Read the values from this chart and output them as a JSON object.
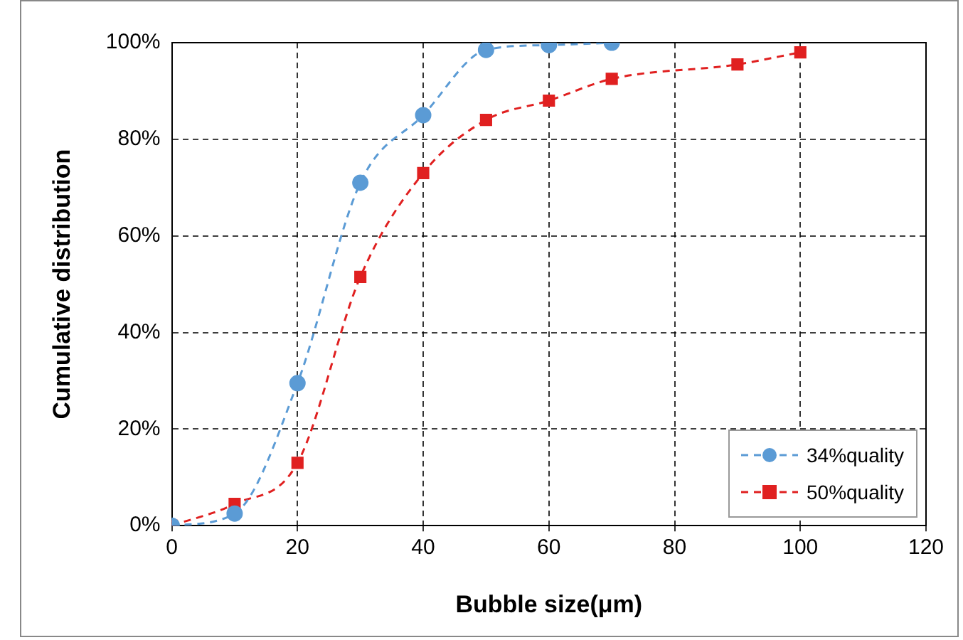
{
  "chart_data": {
    "type": "line",
    "xlabel": "Bubble size(μm)",
    "ylabel": "Cumulative distribution",
    "series": [
      {
        "name": "34%quality",
        "color": "#5b9bd5",
        "marker": "circle",
        "line_style": "dashed",
        "x": [
          0,
          10,
          20,
          30,
          40,
          50,
          60,
          70
        ],
        "values": [
          0,
          2.5,
          29.5,
          71,
          85,
          98.5,
          99.5,
          100
        ]
      },
      {
        "name": "50%quality",
        "color": "#e02020",
        "marker": "square",
        "line_style": "dashed",
        "x": [
          0,
          10,
          20,
          30,
          40,
          50,
          60,
          70,
          90,
          100
        ],
        "values": [
          0,
          4.5,
          13,
          51.5,
          73,
          84,
          88,
          92.5,
          95.5,
          98
        ]
      }
    ],
    "xlim": [
      0,
      120
    ],
    "xticks": [
      0,
      20,
      40,
      60,
      80,
      100,
      120
    ],
    "ylim": [
      0,
      100
    ],
    "yticks": [
      {
        "value": 0,
        "label": "0%"
      },
      {
        "value": 20,
        "label": "20%"
      },
      {
        "value": 40,
        "label": "40%"
      },
      {
        "value": 60,
        "label": "60%"
      },
      {
        "value": 80,
        "label": "80%"
      },
      {
        "value": 100,
        "label": "100%"
      }
    ],
    "grid": true,
    "legend": "bottom right"
  }
}
